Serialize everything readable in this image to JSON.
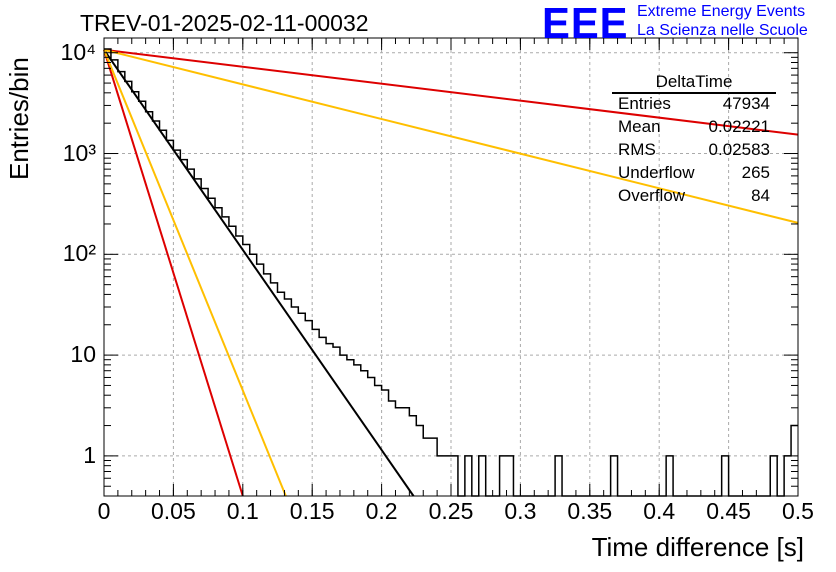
{
  "header": {
    "title": "TREV-01-2025-02-11-00032"
  },
  "logo": {
    "mark": "EEE",
    "line1": "Extreme Energy Events",
    "line2": "La Scienza nelle Scuole",
    "color": "#0000ff"
  },
  "stats_box": {
    "title": "DeltaTime",
    "rows": [
      {
        "name": "Entries",
        "value": "47934"
      },
      {
        "name": "Mean",
        "value": "0.02221"
      },
      {
        "name": "RMS",
        "value": "0.02583"
      },
      {
        "name": "Underflow",
        "value": "265"
      },
      {
        "name": "Overflow",
        "value": "84"
      }
    ]
  },
  "chart_data": {
    "type": "histogram",
    "title": "TREV-01-2025-02-11-00032",
    "xlabel": "Time difference [s]",
    "ylabel": "Entries/bin",
    "xlim": [
      0,
      0.5
    ],
    "ylim": [
      0.4,
      14000
    ],
    "yscale": "log",
    "grid": true,
    "x_ticks": [
      "0",
      "0.05",
      "0.1",
      "0.15",
      "0.2",
      "0.25",
      "0.3",
      "0.35",
      "0.4",
      "0.45",
      "0.5"
    ],
    "y_ticks": [
      "1",
      "10",
      "10²",
      "10³",
      "10⁴"
    ],
    "bin_width": 0.005,
    "histogram_color": "#000000",
    "counts": [
      10900,
      8500,
      6500,
      5200,
      4100,
      3300,
      2600,
      2100,
      1700,
      1350,
      1080,
      870,
      700,
      560,
      450,
      360,
      290,
      235,
      190,
      152,
      125,
      100,
      80,
      64,
      52,
      42,
      36,
      30,
      26,
      22,
      18,
      15,
      13,
      12,
      10,
      9,
      8,
      7,
      6,
      5,
      4.5,
      3.5,
      3,
      3,
      2.5,
      2,
      1.5,
      1.5,
      1,
      1,
      1,
      0,
      1,
      0,
      1,
      0,
      0,
      1,
      1,
      0,
      0,
      0,
      0,
      0,
      0,
      1,
      0,
      0,
      0,
      0,
      0,
      0,
      0,
      1,
      0,
      0,
      0,
      0,
      0,
      0,
      0,
      1,
      0,
      0,
      0,
      0,
      0,
      0,
      0,
      1,
      0,
      0,
      0,
      0,
      0,
      0,
      1,
      0,
      1,
      2
    ],
    "fits": [
      {
        "color": "#000000",
        "y0": 10700,
        "x_end": 0.223
      },
      {
        "color": "#dd0000",
        "y0": 10700,
        "x_end": 0.1
      },
      {
        "color": "#ffbf00",
        "y0": 10700,
        "x_end": 0.131
      },
      {
        "color": "#dd0000",
        "y0": 10700,
        "x_end": 0.5,
        "y_end": 1540
      },
      {
        "color": "#ffbf00",
        "y0": 10700,
        "x_end": 0.5,
        "y_end": 205
      }
    ]
  }
}
